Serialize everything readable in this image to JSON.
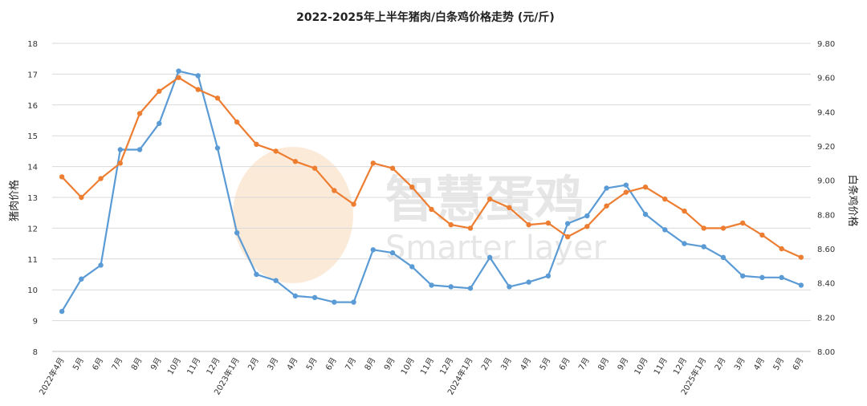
{
  "chart_data": {
    "type": "line",
    "title": "2022-2025年上半年猪肉/白条鸡价格走势 (元/斤)",
    "ylabel_left": "猪肉价格",
    "ylabel_right": "白条鸡价格",
    "ylim_left": [
      8,
      18
    ],
    "ylim_right": [
      8.0,
      9.8
    ],
    "yticks_left": [
      "8",
      "9",
      "10",
      "11",
      "12",
      "13",
      "14",
      "15",
      "16",
      "17",
      "18"
    ],
    "yticks_right": [
      "8.00",
      "8.20",
      "8.40",
      "8.60",
      "8.80",
      "9.00",
      "9.20",
      "9.40",
      "9.60",
      "9.80"
    ],
    "grid": true,
    "categories": [
      "2022年4月",
      "5月",
      "6月",
      "7月",
      "8月",
      "9月",
      "10月",
      "11月",
      "12月",
      "2023年1月",
      "2月",
      "3月",
      "4月",
      "5月",
      "6月",
      "7月",
      "8月",
      "9月",
      "10月",
      "11月",
      "12月",
      "2024年1月",
      "2月",
      "3月",
      "4月",
      "5月",
      "6月",
      "7月",
      "8月",
      "9月",
      "10月",
      "11月",
      "12月",
      "2025年1月",
      "2月",
      "3月",
      "4月",
      "5月",
      "6月"
    ],
    "series": [
      {
        "axis": "left",
        "color": "#5b9bd5",
        "values": [
          9.3,
          10.35,
          10.8,
          14.55,
          14.55,
          15.4,
          17.1,
          16.95,
          14.6,
          11.85,
          10.5,
          10.3,
          9.8,
          9.75,
          9.6,
          9.6,
          11.3,
          11.2,
          10.75,
          10.15,
          10.1,
          10.05,
          11.05,
          10.1,
          10.25,
          10.45,
          12.15,
          12.4,
          13.3,
          13.4,
          12.45,
          11.95,
          11.5,
          11.4,
          11.05,
          10.45,
          10.4,
          10.4,
          10.15
        ]
      },
      {
        "axis": "right",
        "color": "#ed7d31",
        "values": [
          9.02,
          8.9,
          9.01,
          9.1,
          9.39,
          9.52,
          9.6,
          9.53,
          9.48,
          9.34,
          9.21,
          9.17,
          9.11,
          9.07,
          8.94,
          8.86,
          9.1,
          9.07,
          8.96,
          8.83,
          8.74,
          8.72,
          8.89,
          8.84,
          8.74,
          8.75,
          8.67,
          8.73,
          8.85,
          8.93,
          8.96,
          8.89,
          8.82,
          8.72,
          8.72,
          8.75,
          8.68,
          8.6,
          8.55
        ]
      }
    ]
  },
  "watermark": {
    "cn": "智慧蛋鸡",
    "en": "Smarter layer"
  }
}
